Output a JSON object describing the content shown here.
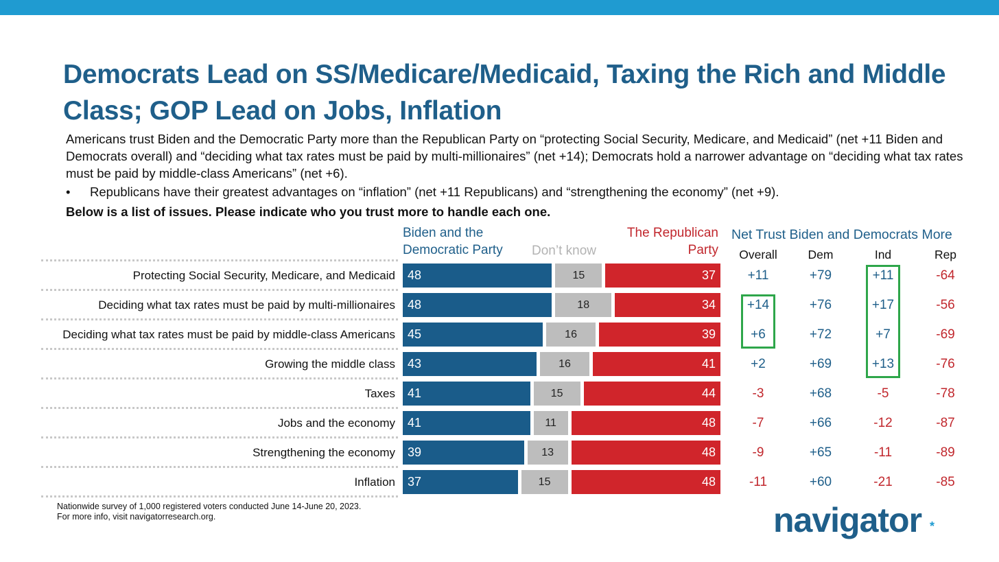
{
  "header": {
    "title": "Democrats Lead on SS/Medicare/Medicaid, Taxing the Rich and Middle Class; GOP Lead on Jobs, Inflation",
    "summary": "Americans trust Biden and the Democratic Party more than the Republican Party on “protecting Social Security, Medicare, and Medicaid” (net +11 Biden and Democrats overall) and “deciding what tax rates must be paid by multi-millionaires” (net +14); Democrats hold a narrower advantage on “deciding what tax rates must be paid by middle-class Americans” (net +6).",
    "bullet_mark": "•",
    "bullet": "Republicans have their greatest advantages on “inflation” (net +11 Republicans) and “strengthening the economy” (net +9).",
    "question": "Below is a list of issues. Please indicate who you trust more to handle each one."
  },
  "colors": {
    "accent_bar": "#1f9bd1",
    "title": "#1f5f8a",
    "democrat": "#1a5c8a",
    "dont_know": "#bdbdbd",
    "republican": "#d0252b",
    "highlight": "#2ea64a"
  },
  "chart_data": {
    "type": "bar",
    "orientation": "horizontal",
    "stacked": true,
    "categories": [
      "Protecting Social Security, Medicare, and Medicaid",
      "Deciding what tax rates must be paid by multi-millionaires",
      "Deciding what tax rates must be paid by middle-class Americans",
      "Growing the middle class",
      "Taxes",
      "Jobs and the economy",
      "Strengthening the economy",
      "Inflation"
    ],
    "series": [
      {
        "name": "Biden and the Democratic Party",
        "values": [
          48,
          48,
          45,
          43,
          41,
          41,
          39,
          37
        ]
      },
      {
        "name": "Don’t know",
        "values": [
          15,
          18,
          16,
          16,
          15,
          11,
          13,
          15
        ]
      },
      {
        "name": "The Republican Party",
        "values": [
          37,
          34,
          39,
          41,
          44,
          48,
          48,
          48
        ]
      }
    ],
    "series_headers": {
      "biden": [
        "Biden and the",
        "Democratic Party"
      ],
      "dont_know": "Don’t know",
      "republican": [
        "The Republican",
        "Party"
      ]
    },
    "net_table": {
      "title": "Net Trust Biden and Democrats More",
      "columns": [
        "Overall",
        "Dem",
        "Ind",
        "Rep"
      ],
      "values": [
        [
          "+11",
          "+79",
          "+11",
          "-64"
        ],
        [
          "+14",
          "+76",
          "+17",
          "-56"
        ],
        [
          "+6",
          "+72",
          "+7",
          "-69"
        ],
        [
          "+2",
          "+69",
          "+13",
          "-76"
        ],
        [
          "-3",
          "+68",
          "-5",
          "-78"
        ],
        [
          "-7",
          "+66",
          "-12",
          "-87"
        ],
        [
          "-9",
          "+65",
          "-11",
          "-89"
        ],
        [
          "-11",
          "+60",
          "-21",
          "-85"
        ]
      ],
      "highlighted": [
        {
          "column": "Overall",
          "rows": [
            1,
            2
          ]
        },
        {
          "column": "Ind",
          "rows": [
            0,
            1,
            2,
            3
          ]
        }
      ]
    }
  },
  "footer": {
    "note_line1": "Nationwide survey of 1,000 registered voters conducted June 14-June 20, 2023.",
    "note_line2": "For more info, visit navigatorresearch.org.",
    "logo": "navigator",
    "logo_mark": "*"
  }
}
